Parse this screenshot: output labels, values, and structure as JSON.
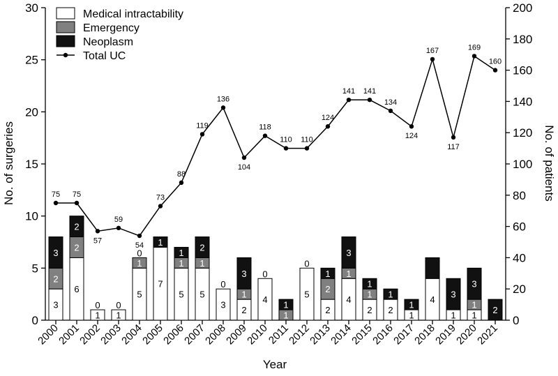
{
  "chart_data": {
    "type": "bar",
    "subtype": "stacked-bar-with-line",
    "xlabel": "Year",
    "ylabel_left": "No. of surgeries",
    "ylabel_right": "No. of patients",
    "ylim_left": [
      0,
      30
    ],
    "yticks_left": [
      "0",
      "5",
      "10",
      "15",
      "20",
      "25",
      "30"
    ],
    "ylim_right": [
      0,
      200
    ],
    "yticks_right": [
      "0",
      "20",
      "40",
      "60",
      "80",
      "100",
      "120",
      "140",
      "160",
      "180",
      "200"
    ],
    "categories": [
      "2000",
      "2001",
      "2002",
      "2003",
      "2004",
      "2005",
      "2006",
      "2007",
      "2008",
      "2009",
      "2010",
      "2011",
      "2012",
      "2013",
      "2014",
      "2015",
      "2016",
      "2017",
      "2018",
      "2019",
      "2020",
      "2021"
    ],
    "series": [
      {
        "name": "Medical intractability",
        "color": "#ffffff",
        "values": [
          3,
          6,
          1,
          1,
          5,
          7,
          5,
          5,
          3,
          2,
          4,
          0,
          5,
          2,
          4,
          2,
          2,
          1,
          4,
          1,
          1,
          0
        ]
      },
      {
        "name": "Emergency",
        "color": "#808080",
        "values": [
          2,
          2,
          0,
          0,
          1,
          0,
          1,
          1,
          0,
          1,
          0,
          1,
          0,
          2,
          1,
          1,
          0,
          0,
          0,
          0,
          1,
          0
        ]
      },
      {
        "name": "Neoplasm",
        "color": "#111111",
        "values": [
          3,
          2,
          0,
          0,
          0,
          1,
          1,
          2,
          0,
          3,
          0,
          1,
          0,
          1,
          3,
          1,
          1,
          1,
          2,
          3,
          3,
          2
        ]
      }
    ],
    "segment_labels": {
      "Medical intractability": [
        "3",
        "6",
        "1",
        "1",
        "5",
        "7",
        "5",
        "5",
        "3",
        "2",
        "4",
        "0",
        "5",
        "2",
        "4",
        "2",
        "2",
        "1",
        "4",
        "1",
        "1",
        "0"
      ],
      "Emergency": [
        "2",
        "2",
        "0",
        "0",
        "1",
        "0",
        "1",
        "1",
        "0",
        "1",
        "0",
        "1",
        "0",
        "2",
        "1",
        "1",
        "0",
        "0",
        "",
        "0",
        "1",
        ""
      ],
      "Neoplasm": [
        "3",
        "2",
        "",
        "",
        "0",
        "1",
        "1",
        "2",
        "",
        "3",
        "",
        "1",
        "",
        "1",
        "3",
        "1",
        "1",
        "1",
        "",
        "3",
        "3",
        "2"
      ]
    },
    "line": {
      "name": "Total UC",
      "axis": "right",
      "values": [
        75,
        75,
        57,
        59,
        54,
        73,
        88,
        119,
        136,
        104,
        118,
        110,
        110,
        124,
        141,
        141,
        134,
        124,
        167,
        117,
        169,
        160
      ],
      "labels": [
        "75",
        "75",
        "57",
        "59",
        "54",
        "73",
        "88",
        "119",
        "136",
        "104",
        "118",
        "110",
        "110",
        "124",
        "141",
        "141",
        "134",
        "124",
        "167",
        "117",
        "169",
        "160"
      ]
    },
    "legend": {
      "position": "top-left",
      "entries": [
        "Medical intractability",
        "Emergency",
        "Neoplasm",
        "Total UC"
      ]
    }
  }
}
